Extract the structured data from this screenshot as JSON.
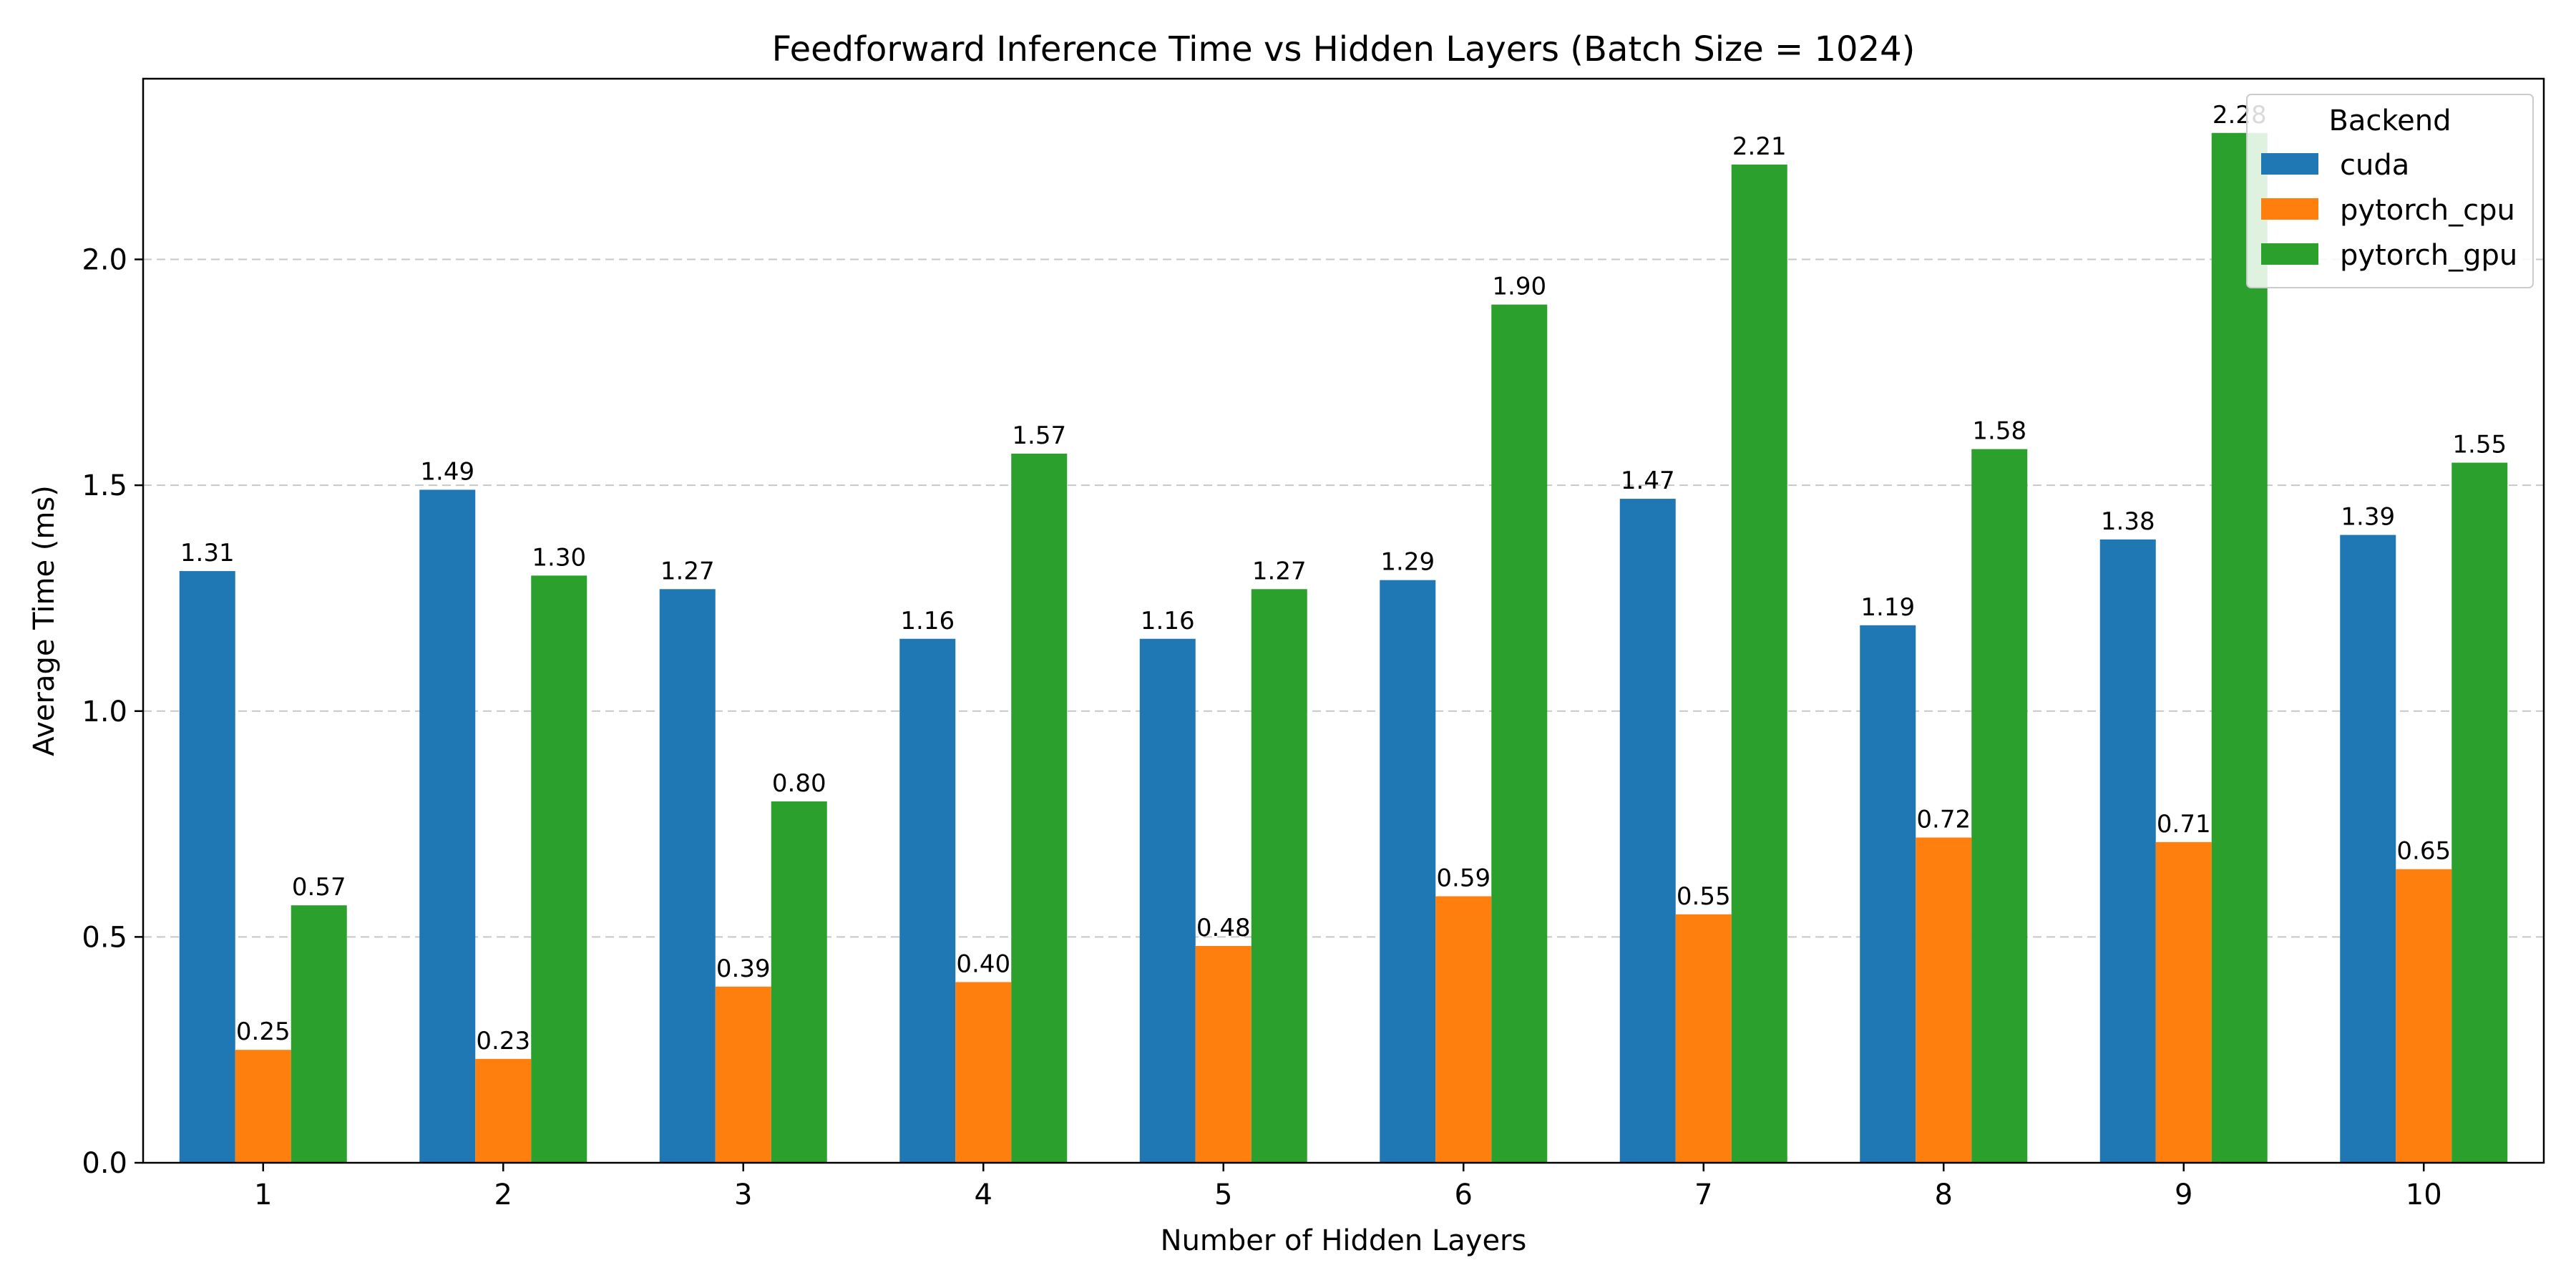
{
  "chart_data": {
    "type": "bar",
    "title": "Feedforward Inference Time vs Hidden Layers (Batch Size = 1024)",
    "xlabel": "Number of Hidden Layers",
    "ylabel": "Average Time (ms)",
    "categories": [
      "1",
      "2",
      "3",
      "4",
      "5",
      "6",
      "7",
      "8",
      "9",
      "10"
    ],
    "series": [
      {
        "name": "cuda",
        "color": "#1f77b4",
        "values": [
          1.31,
          1.49,
          1.27,
          1.16,
          1.16,
          1.29,
          1.47,
          1.19,
          1.38,
          1.39
        ],
        "labels": [
          "1.31",
          "1.49",
          "1.27",
          "1.16",
          "1.16",
          "1.29",
          "1.47",
          "1.19",
          "1.38",
          "1.39"
        ]
      },
      {
        "name": "pytorch_cpu",
        "color": "#ff7f0e",
        "values": [
          0.25,
          0.23,
          0.39,
          0.4,
          0.48,
          0.59,
          0.55,
          0.72,
          0.71,
          0.65
        ],
        "labels": [
          "0.25",
          "0.23",
          "0.39",
          "0.40",
          "0.48",
          "0.59",
          "0.55",
          "0.72",
          "0.71",
          "0.65"
        ]
      },
      {
        "name": "pytorch_gpu",
        "color": "#2ca02c",
        "values": [
          0.57,
          1.3,
          0.8,
          1.57,
          1.27,
          1.9,
          2.21,
          1.58,
          2.28,
          1.55
        ],
        "labels": [
          "0.57",
          "1.30",
          "0.80",
          "1.57",
          "1.27",
          "1.90",
          "2.21",
          "1.58",
          "2.28",
          "1.55"
        ]
      }
    ],
    "ylim": [
      0,
      2.4
    ],
    "yticks": [
      0.0,
      0.5,
      1.0,
      1.5,
      2.0
    ],
    "ytick_labels": [
      "0.0",
      "0.5",
      "1.0",
      "1.5",
      "2.0"
    ],
    "grid": "y-dashed",
    "legend": {
      "title": "Backend",
      "placement": "top-right"
    }
  }
}
